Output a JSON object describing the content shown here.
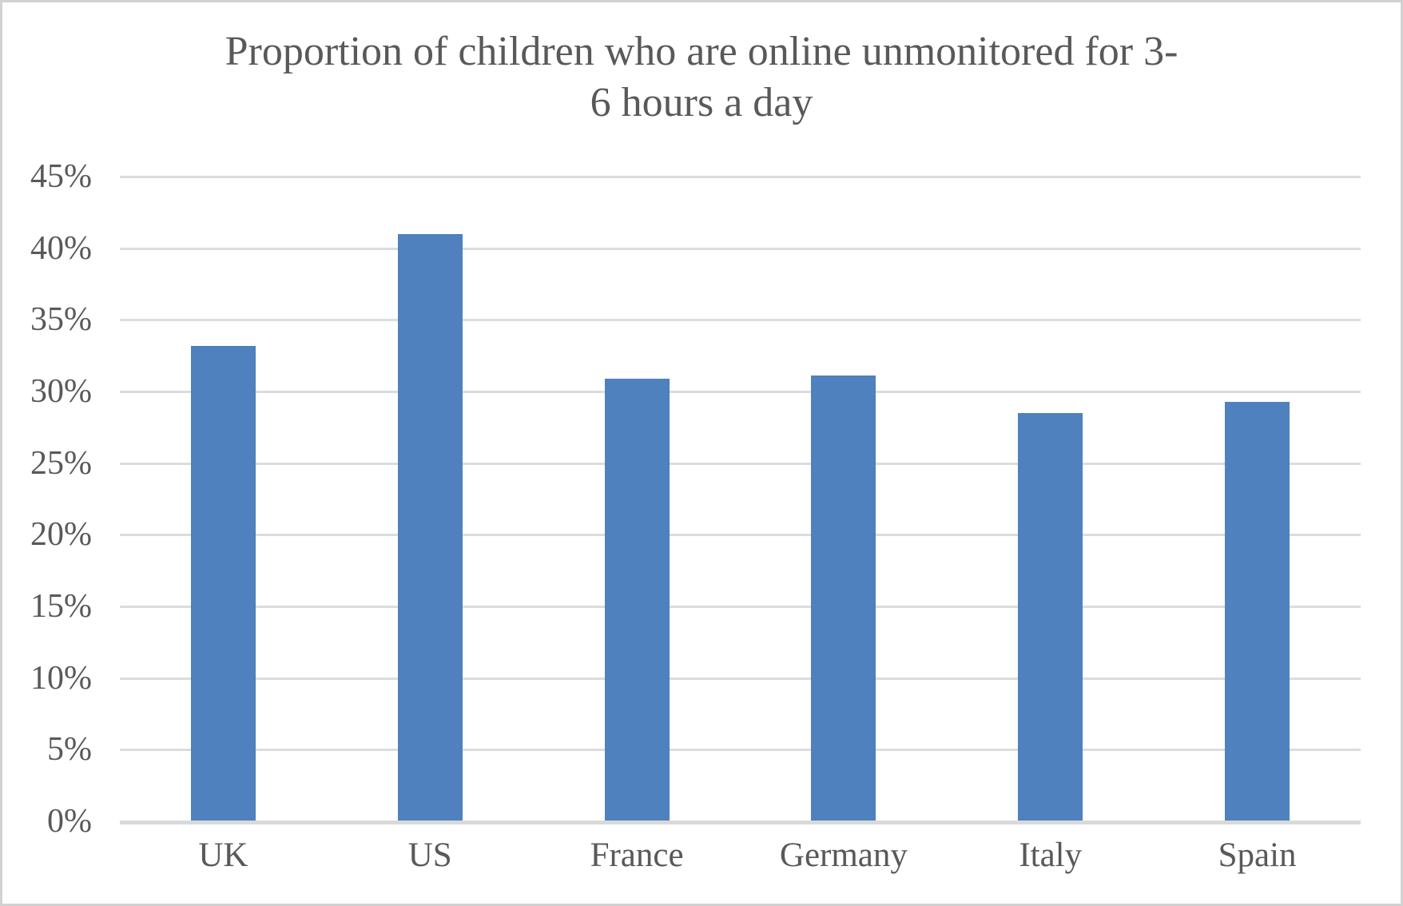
{
  "chart_data": {
    "type": "bar",
    "title": "Proportion of children who are online unmonitored for 3-6 hours a day",
    "title_lines": [
      "Proportion of children who are online unmonitored for 3-",
      "6 hours a day"
    ],
    "categories": [
      "UK",
      "US",
      "France",
      "Germany",
      "Italy",
      "Spain"
    ],
    "values": [
      33.2,
      41.0,
      30.9,
      31.1,
      28.5,
      29.3
    ],
    "unit": "%",
    "xlabel": "",
    "ylabel": "",
    "ylim": [
      0,
      45
    ],
    "ytick_step": 5,
    "ytick_labels": [
      "0%",
      "5%",
      "10%",
      "15%",
      "20%",
      "25%",
      "30%",
      "35%",
      "40%",
      "45%"
    ],
    "grid": "horizontal",
    "legend": "none",
    "bar_color": "#4E81BD"
  },
  "colors": {
    "bar": "#4E81BD",
    "gridline": "#DCDCDC",
    "axis_line": "#D9D9D9",
    "text": "#595959",
    "frame_border": "#D2D2D2",
    "background": "#FFFFFF"
  }
}
